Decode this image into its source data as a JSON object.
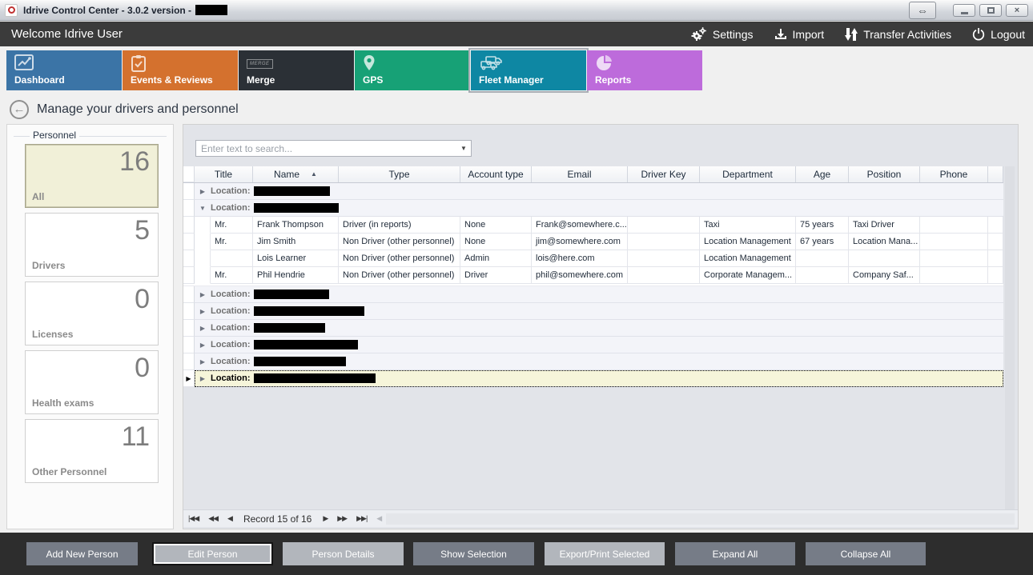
{
  "window": {
    "title": "Idrive Control Center - 3.0.2 version -",
    "title_redacted_width": 40,
    "controls": {
      "resize": "resize",
      "minimize": "minimize",
      "maximize": "maximize",
      "close": "close"
    }
  },
  "menubar": {
    "welcome": "Welcome Idrive User",
    "items": [
      {
        "label": "Settings",
        "icon": "gears-icon"
      },
      {
        "label": "Import",
        "icon": "import-icon"
      },
      {
        "label": "Transfer Activities",
        "icon": "transfer-icon"
      },
      {
        "label": "Logout",
        "icon": "power-icon"
      }
    ]
  },
  "tabs": [
    {
      "label": "Dashboard",
      "color": "#3b74a6",
      "icon": "chart-icon",
      "selected": false
    },
    {
      "label": "Events & Reviews",
      "color": "#d4712e",
      "icon": "clipboard-icon",
      "selected": false
    },
    {
      "label": "Merge",
      "color": "#2b3036",
      "icon": "merge-icon",
      "selected": false
    },
    {
      "label": "GPS",
      "color": "#17a176",
      "icon": "pin-icon",
      "selected": false
    },
    {
      "label": "Fleet Manager",
      "color": "#0e87a3",
      "icon": "trucks-icon",
      "selected": true
    },
    {
      "label": "Reports",
      "color": "#bd6bdb",
      "icon": "pie-icon",
      "selected": false
    }
  ],
  "page": {
    "title": "Manage your drivers and personnel"
  },
  "sidebar": {
    "title": "Personnel",
    "cards": [
      {
        "label": "All",
        "count": "16",
        "selected": true
      },
      {
        "label": "Drivers",
        "count": "5",
        "selected": false
      },
      {
        "label": "Licenses",
        "count": "0",
        "selected": false
      },
      {
        "label": "Health exams",
        "count": "0",
        "selected": false
      },
      {
        "label": "Other Personnel",
        "count": "11",
        "selected": false
      }
    ]
  },
  "search": {
    "placeholder": "Enter text to search..."
  },
  "table": {
    "columns": [
      "Title",
      "Name",
      "Type",
      "Account type",
      "Email",
      "Driver Key",
      "Department",
      "Age",
      "Position",
      "Phone"
    ],
    "sorted_column": "Name",
    "sort_direction": "asc",
    "group_prefix": "Location:",
    "rows": [
      {
        "kind": "group",
        "expanded": false,
        "selected": false,
        "redact_width": 95
      },
      {
        "kind": "group",
        "expanded": true,
        "selected": false,
        "redact_width": 106
      },
      {
        "kind": "person",
        "title": "Mr.",
        "name": "Frank Thompson",
        "type": "Driver (in reports)",
        "account_type": "None",
        "email": "Frank@somewhere.c...",
        "driver_key": "",
        "department": "Taxi",
        "age": "75 years",
        "position": "Taxi Driver",
        "phone": ""
      },
      {
        "kind": "person",
        "title": "Mr.",
        "name": "Jim Smith",
        "type": "Non Driver (other personnel)",
        "account_type": "None",
        "email": "jim@somewhere.com",
        "driver_key": "",
        "department": "Location Management",
        "age": "67 years",
        "position": "Location Mana...",
        "phone": ""
      },
      {
        "kind": "person",
        "title": "",
        "name": "Lois Learner",
        "type": "Non Driver (other personnel)",
        "account_type": "Admin",
        "email": "lois@here.com",
        "driver_key": "",
        "department": "Location Management",
        "age": "",
        "position": "",
        "phone": ""
      },
      {
        "kind": "person",
        "title": "Mr.",
        "name": "Phil Hendrie",
        "type": "Non Driver (other personnel)",
        "account_type": "Driver",
        "email": "phil@somewhere.com",
        "driver_key": "",
        "department": "Corporate Managem...",
        "age": "",
        "position": "Company Saf...",
        "phone": ""
      },
      {
        "kind": "group",
        "expanded": false,
        "selected": false,
        "redact_width": 94
      },
      {
        "kind": "group",
        "expanded": false,
        "selected": false,
        "redact_width": 138
      },
      {
        "kind": "group",
        "expanded": false,
        "selected": false,
        "redact_width": 89
      },
      {
        "kind": "group",
        "expanded": false,
        "selected": false,
        "redact_width": 130
      },
      {
        "kind": "group",
        "expanded": false,
        "selected": false,
        "redact_width": 115
      },
      {
        "kind": "group",
        "expanded": false,
        "selected": true,
        "redact_width": 152
      }
    ]
  },
  "pager": {
    "record_text": "Record 15 of 16"
  },
  "footer": {
    "buttons": [
      {
        "label": "Add New Person",
        "style": "normal",
        "focused": false
      },
      {
        "label": "Edit Person",
        "style": "light",
        "focused": true
      },
      {
        "label": "Person Details",
        "style": "light",
        "focused": false
      },
      {
        "label": "Show Selection",
        "style": "normal",
        "focused": false
      },
      {
        "label": "Export/Print Selected",
        "style": "light",
        "focused": false
      },
      {
        "label": "Expand All",
        "style": "normal",
        "focused": false
      },
      {
        "label": "Collapse All",
        "style": "normal",
        "focused": false
      }
    ]
  }
}
